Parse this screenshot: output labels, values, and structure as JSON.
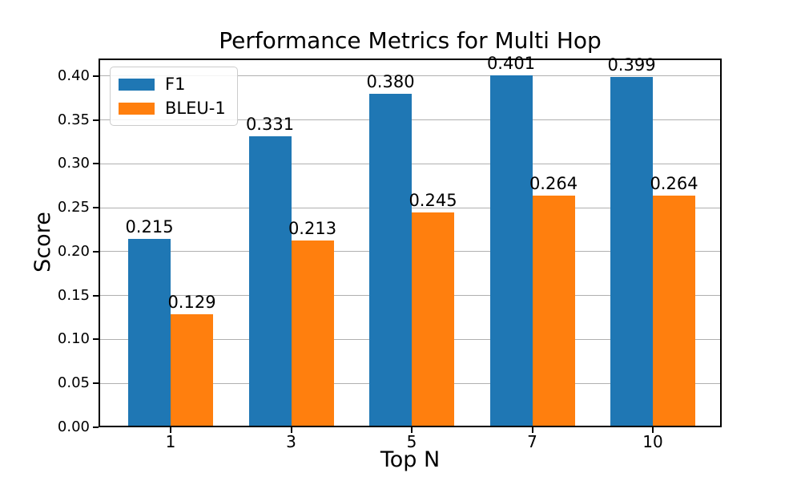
{
  "chart_data": {
    "type": "bar",
    "title": "Performance Metrics for Multi Hop",
    "xlabel": "Top N",
    "ylabel": "Score",
    "categories": [
      "1",
      "3",
      "5",
      "7",
      "10"
    ],
    "series": [
      {
        "name": "F1",
        "color": "#1f77b4",
        "values": [
          0.215,
          0.331,
          0.38,
          0.401,
          0.399
        ]
      },
      {
        "name": "BLEU-1",
        "color": "#ff7f0e",
        "values": [
          0.129,
          0.213,
          0.245,
          0.264,
          0.264
        ]
      }
    ],
    "ylim": [
      0,
      0.42
    ],
    "yticks": [
      "0.00",
      "0.05",
      "0.10",
      "0.15",
      "0.20",
      "0.25",
      "0.30",
      "0.35",
      "0.40"
    ],
    "grid": "horizontal",
    "gridline_color": "#b0b0b0",
    "legend_position": "upper left",
    "value_label_format": "3 decimals"
  }
}
